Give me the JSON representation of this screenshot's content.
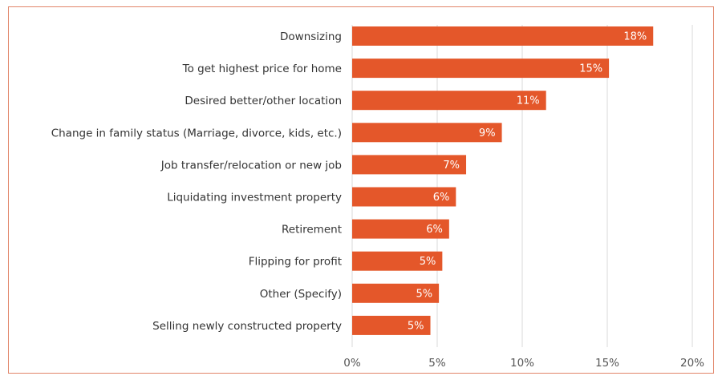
{
  "colors": {
    "bar": "#E4572A",
    "grid": "#D9D9D9",
    "frame": "#E1856A"
  },
  "chart_data": {
    "type": "bar",
    "orientation": "horizontal",
    "title": "",
    "xlabel": "",
    "ylabel": "",
    "categories": [
      "Downsizing",
      "To get highest price for home",
      "Desired better/other location",
      "Change in family status (Marriage, divorce, kids, etc.)",
      "Job transfer/relocation or new job",
      "Liquidating investment property",
      "Retirement",
      "Flipping for profit",
      "Other (Specify)",
      "Selling newly constructed property"
    ],
    "values": [
      17.7,
      15.1,
      11.4,
      8.8,
      6.7,
      6.1,
      5.7,
      5.3,
      5.1,
      4.6
    ],
    "data_labels": [
      "18%",
      "15%",
      "11%",
      "9%",
      "7%",
      "6%",
      "6%",
      "5%",
      "5%",
      "5%"
    ],
    "xlim": [
      0,
      20
    ],
    "ticks": [
      0,
      5,
      10,
      15,
      20
    ],
    "tick_labels": [
      "0%",
      "5%",
      "10%",
      "15%",
      "20%"
    ],
    "grid": true,
    "legend": "none"
  }
}
